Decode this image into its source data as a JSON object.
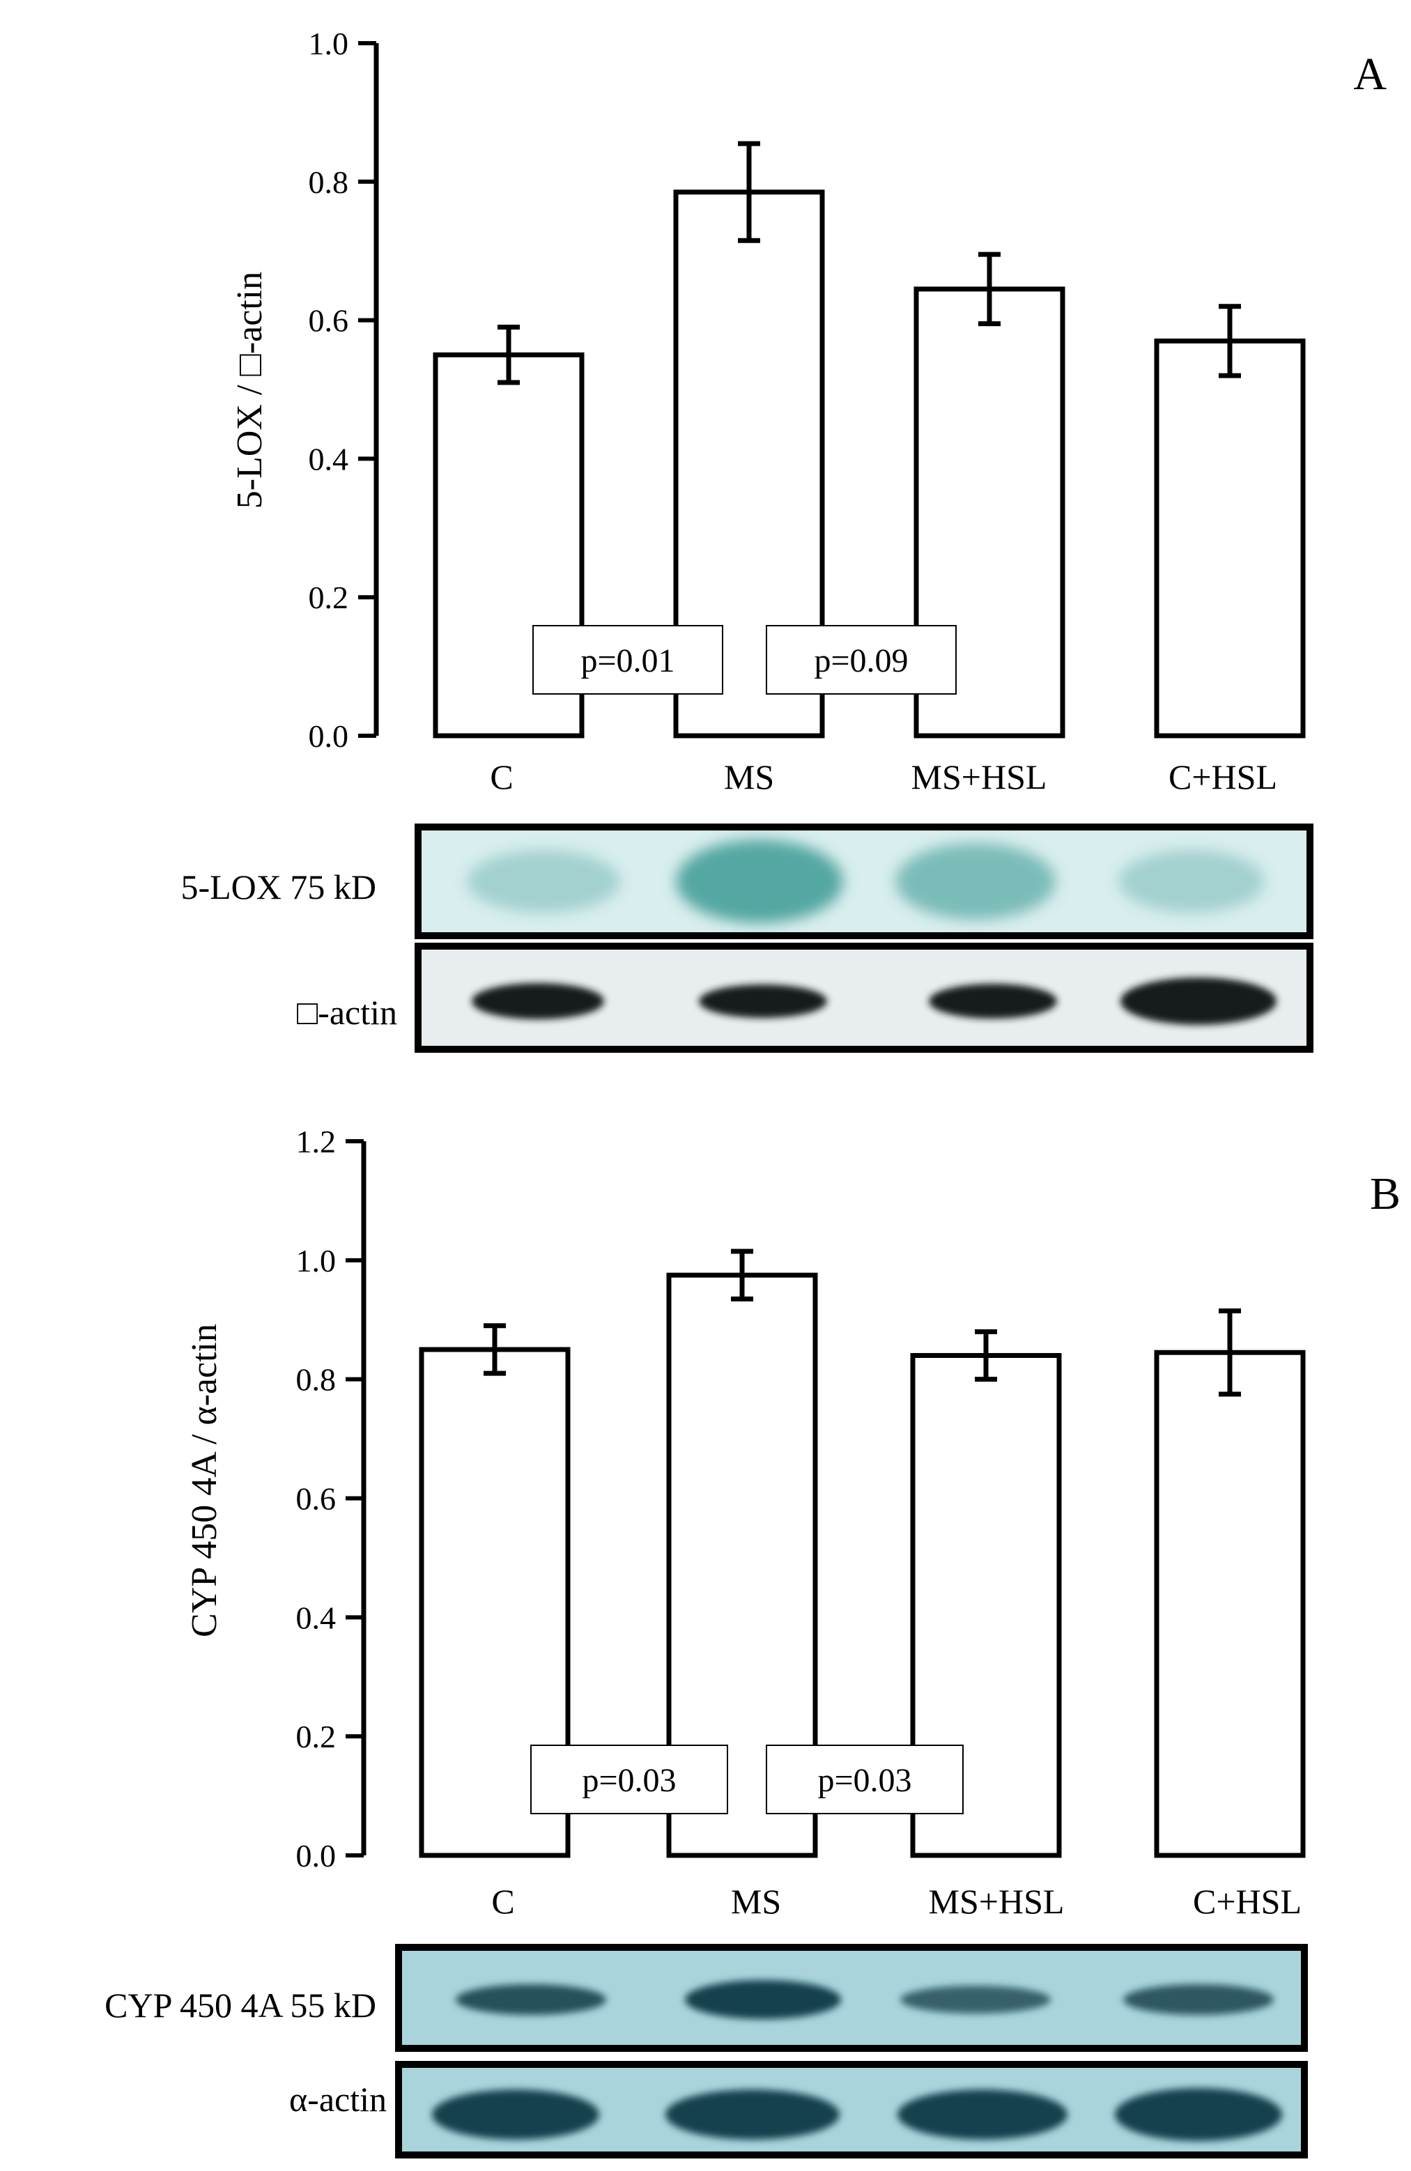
{
  "chart_data": [
    {
      "panel": "A",
      "type": "bar",
      "ylabel": "5-LOX / □-actin",
      "ylim": [
        0,
        1.0
      ],
      "yticks": [
        "0.0",
        "0.2",
        "0.4",
        "0.6",
        "0.8",
        "1.0"
      ],
      "categories": [
        "C",
        "MS",
        "MS+HSL",
        "C+HSL"
      ],
      "values": [
        0.55,
        0.785,
        0.645,
        0.57
      ],
      "errors": [
        0.04,
        0.07,
        0.05,
        0.05
      ],
      "annotations": [
        "p=0.01",
        "p=0.09"
      ],
      "blot_labels": [
        "5-LOX 75 kD",
        "□-actin"
      ],
      "grid": false
    },
    {
      "panel": "B",
      "type": "bar",
      "ylabel": "CYP 450 4A / α-actin",
      "ylim": [
        0,
        1.2
      ],
      "yticks": [
        "0.0",
        "0.2",
        "0.4",
        "0.6",
        "0.8",
        "1.0",
        "1.2"
      ],
      "categories": [
        "C",
        "MS",
        "MS+HSL",
        "C+HSL"
      ],
      "values": [
        0.85,
        0.975,
        0.84,
        0.845
      ],
      "errors": [
        0.04,
        0.04,
        0.04,
        0.07
      ],
      "annotations": [
        "p=0.03",
        "p=0.03"
      ],
      "blot_labels": [
        "CYP 450 4A 55 kD",
        "α-actin"
      ],
      "grid": false
    }
  ],
  "colors": {
    "bar_fill": "#ffffff",
    "stroke": "#000000",
    "blot_green_bg": "#d9eeee",
    "blot_green_band": "#3d9b95",
    "blot_gray_bg": "#e8edef",
    "blot_dark_band": "#151a1c",
    "blot_cyan_bg": "#a9d4dc",
    "blot_cyan_band": "#0c3a46"
  }
}
